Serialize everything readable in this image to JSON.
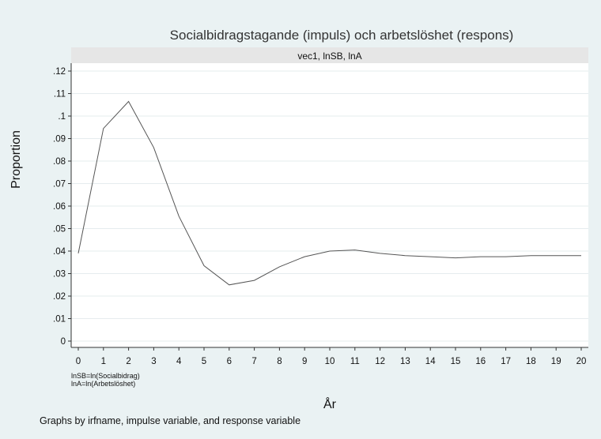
{
  "chart_data": {
    "type": "line",
    "title": "Socialbidragstagande (impuls) och arbetslöshet (respons)",
    "panel_label": "vec1, lnSB, lnA",
    "xlabel": "År",
    "ylabel": "Proportion",
    "x": [
      0,
      1,
      2,
      3,
      4,
      5,
      6,
      7,
      8,
      9,
      10,
      11,
      12,
      13,
      14,
      15,
      16,
      17,
      18,
      19,
      20
    ],
    "series": [
      {
        "values": [
          0.039,
          0.0945,
          0.1065,
          0.086,
          0.0555,
          0.0335,
          0.025,
          0.027,
          0.033,
          0.0375,
          0.04,
          0.0405,
          0.039,
          0.038,
          0.0375,
          0.037,
          0.0375,
          0.0375,
          0.038,
          0.038,
          0.038
        ]
      }
    ],
    "xticks": [
      "0",
      "1",
      "2",
      "3",
      "4",
      "5",
      "6",
      "7",
      "8",
      "9",
      "10",
      "11",
      "12",
      "13",
      "14",
      "15",
      "16",
      "17",
      "18",
      "19",
      "20"
    ],
    "yticks": [
      "0",
      ".01",
      ".02",
      ".03",
      ".04",
      ".05",
      ".06",
      ".07",
      ".08",
      ".09",
      ".1",
      ".11",
      ".12"
    ],
    "xlim": [
      0,
      20
    ],
    "ylim": [
      0,
      0.12
    ],
    "grid": true,
    "notes": [
      "lnSB=ln(Socialbidrag)",
      "lnA=ln(Arbetslöshet)"
    ],
    "caption": "Graphs by irfname, impulse variable, and response variable",
    "colors": {
      "background": "#eaf2f3",
      "plot": "#ffffff",
      "strip": "#e6e6e6",
      "line": "#555555",
      "grid": "#e6ecee"
    }
  }
}
